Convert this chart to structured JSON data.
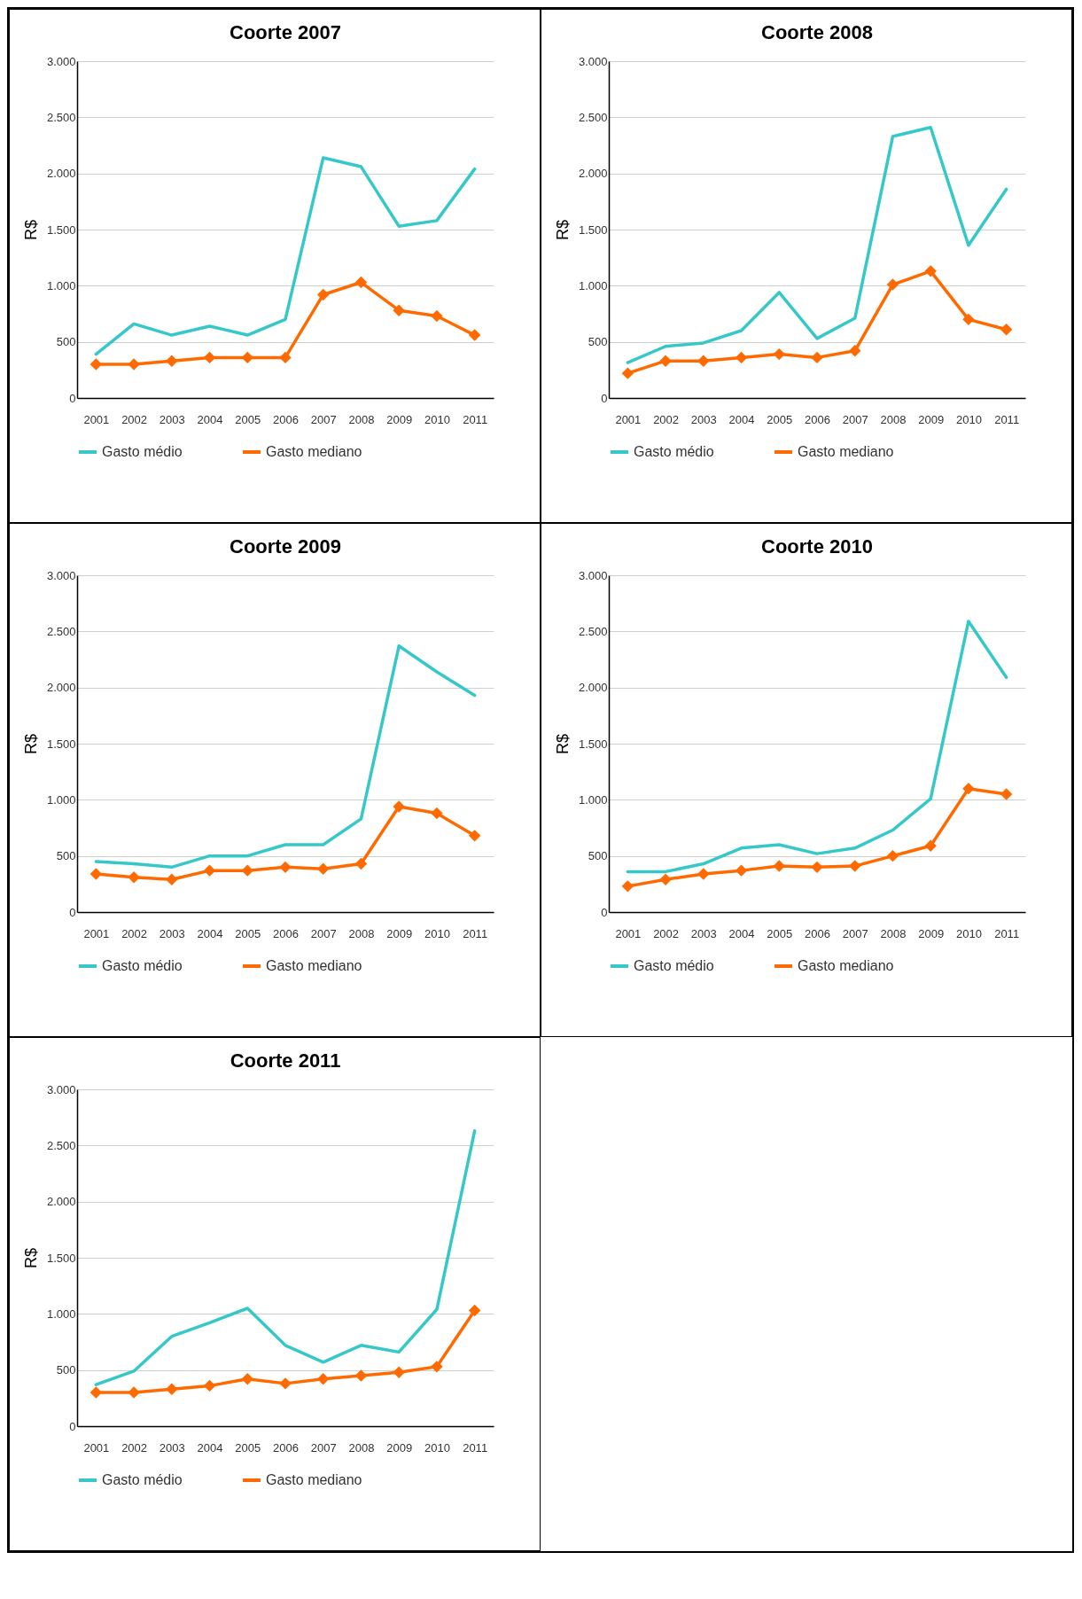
{
  "chart_data": [
    {
      "type": "line",
      "title": "Coorte 2007",
      "ylabel": "R$",
      "categories": [
        "2001",
        "2002",
        "2003",
        "2004",
        "2005",
        "2006",
        "2007",
        "2008",
        "2009",
        "2010",
        "2011"
      ],
      "ylim": [
        0,
        3000
      ],
      "yticks": [
        {
          "value": 0,
          "label": "0"
        },
        {
          "value": 500,
          "label": "500"
        },
        {
          "value": 1000,
          "label": "1.000"
        },
        {
          "value": 1500,
          "label": "1.500"
        },
        {
          "value": 2000,
          "label": "2.000"
        },
        {
          "value": 2500,
          "label": "2.500"
        },
        {
          "value": 3000,
          "label": "3.000"
        }
      ],
      "grid": "y",
      "legend": "bottom",
      "series": [
        {
          "name": "Gasto médio",
          "color": "#36c8c8",
          "values": [
            390,
            660,
            560,
            640,
            560,
            700,
            2140,
            2060,
            1530,
            1580,
            2040
          ]
        },
        {
          "name": "Gasto mediano",
          "color": "#ff6a00",
          "marker": "diamond",
          "values": [
            300,
            300,
            330,
            360,
            360,
            360,
            920,
            1030,
            780,
            730,
            560
          ]
        }
      ]
    },
    {
      "type": "line",
      "title": "Coorte 2008",
      "ylabel": "R$",
      "categories": [
        "2001",
        "2002",
        "2003",
        "2004",
        "2005",
        "2006",
        "2007",
        "2008",
        "2009",
        "2010",
        "2011"
      ],
      "ylim": [
        0,
        3000
      ],
      "yticks": [
        {
          "value": 0,
          "label": "0"
        },
        {
          "value": 500,
          "label": "500"
        },
        {
          "value": 1000,
          "label": "1.000"
        },
        {
          "value": 1500,
          "label": "1.500"
        },
        {
          "value": 2000,
          "label": "2.000"
        },
        {
          "value": 2500,
          "label": "2.500"
        },
        {
          "value": 3000,
          "label": "3.000"
        }
      ],
      "grid": "y",
      "legend": "bottom",
      "series": [
        {
          "name": "Gasto médio",
          "color": "#36c8c8",
          "values": [
            315,
            460,
            490,
            600,
            940,
            530,
            710,
            2330,
            2410,
            1360,
            1860
          ]
        },
        {
          "name": "Gasto mediano",
          "color": "#ff6a00",
          "marker": "diamond",
          "values": [
            220,
            330,
            330,
            360,
            390,
            360,
            420,
            1010,
            1130,
            700,
            610
          ]
        }
      ]
    },
    {
      "type": "line",
      "title": "Coorte 2009",
      "ylabel": "R$",
      "categories": [
        "2001",
        "2002",
        "2003",
        "2004",
        "2005",
        "2006",
        "2007",
        "2008",
        "2009",
        "2010",
        "2011"
      ],
      "ylim": [
        0,
        3000
      ],
      "yticks": [
        {
          "value": 0,
          "label": "0"
        },
        {
          "value": 500,
          "label": "500"
        },
        {
          "value": 1000,
          "label": "1.000"
        },
        {
          "value": 1500,
          "label": "1.500"
        },
        {
          "value": 2000,
          "label": "2.000"
        },
        {
          "value": 2500,
          "label": "2.500"
        },
        {
          "value": 3000,
          "label": "3.000"
        }
      ],
      "grid": "y",
      "legend": "bottom",
      "series": [
        {
          "name": "Gasto médio",
          "color": "#36c8c8",
          "values": [
            450,
            430,
            400,
            500,
            500,
            600,
            600,
            830,
            2370,
            2140,
            1930
          ]
        },
        {
          "name": "Gasto mediano",
          "color": "#ff6a00",
          "marker": "diamond",
          "values": [
            340,
            310,
            290,
            370,
            370,
            400,
            385,
            430,
            940,
            880,
            680
          ]
        }
      ]
    },
    {
      "type": "line",
      "title": "Coorte 2010",
      "ylabel": "R$",
      "categories": [
        "2001",
        "2002",
        "2003",
        "2004",
        "2005",
        "2006",
        "2007",
        "2008",
        "2009",
        "2010",
        "2011"
      ],
      "ylim": [
        0,
        3000
      ],
      "yticks": [
        {
          "value": 0,
          "label": "0"
        },
        {
          "value": 500,
          "label": "500"
        },
        {
          "value": 1000,
          "label": "1.000"
        },
        {
          "value": 1500,
          "label": "1.500"
        },
        {
          "value": 2000,
          "label": "2.000"
        },
        {
          "value": 2500,
          "label": "2.500"
        },
        {
          "value": 3000,
          "label": "3.000"
        }
      ],
      "grid": "y",
      "legend": "bottom",
      "series": [
        {
          "name": "Gasto médio",
          "color": "#36c8c8",
          "values": [
            360,
            360,
            430,
            570,
            600,
            520,
            570,
            730,
            1010,
            2590,
            2090
          ]
        },
        {
          "name": "Gasto mediano",
          "color": "#ff6a00",
          "marker": "diamond",
          "values": [
            230,
            290,
            340,
            370,
            410,
            400,
            410,
            500,
            590,
            1100,
            1050
          ]
        }
      ]
    },
    {
      "type": "line",
      "title": "Coorte 2011",
      "ylabel": "R$",
      "categories": [
        "2001",
        "2002",
        "2003",
        "2004",
        "2005",
        "2006",
        "2007",
        "2008",
        "2009",
        "2010",
        "2011"
      ],
      "ylim": [
        0,
        3000
      ],
      "yticks": [
        {
          "value": 0,
          "label": "0"
        },
        {
          "value": 500,
          "label": "500"
        },
        {
          "value": 1000,
          "label": "1.000"
        },
        {
          "value": 1500,
          "label": "1.500"
        },
        {
          "value": 2000,
          "label": "2.000"
        },
        {
          "value": 2500,
          "label": "2.500"
        },
        {
          "value": 3000,
          "label": "3.000"
        }
      ],
      "grid": "y",
      "legend": "bottom",
      "series": [
        {
          "name": "Gasto médio",
          "color": "#36c8c8",
          "values": [
            370,
            490,
            800,
            920,
            1050,
            720,
            570,
            720,
            660,
            1040,
            2630
          ]
        },
        {
          "name": "Gasto mediano",
          "color": "#ff6a00",
          "marker": "diamond",
          "values": [
            300,
            300,
            330,
            360,
            420,
            380,
            420,
            450,
            480,
            530,
            1030
          ]
        }
      ]
    }
  ]
}
